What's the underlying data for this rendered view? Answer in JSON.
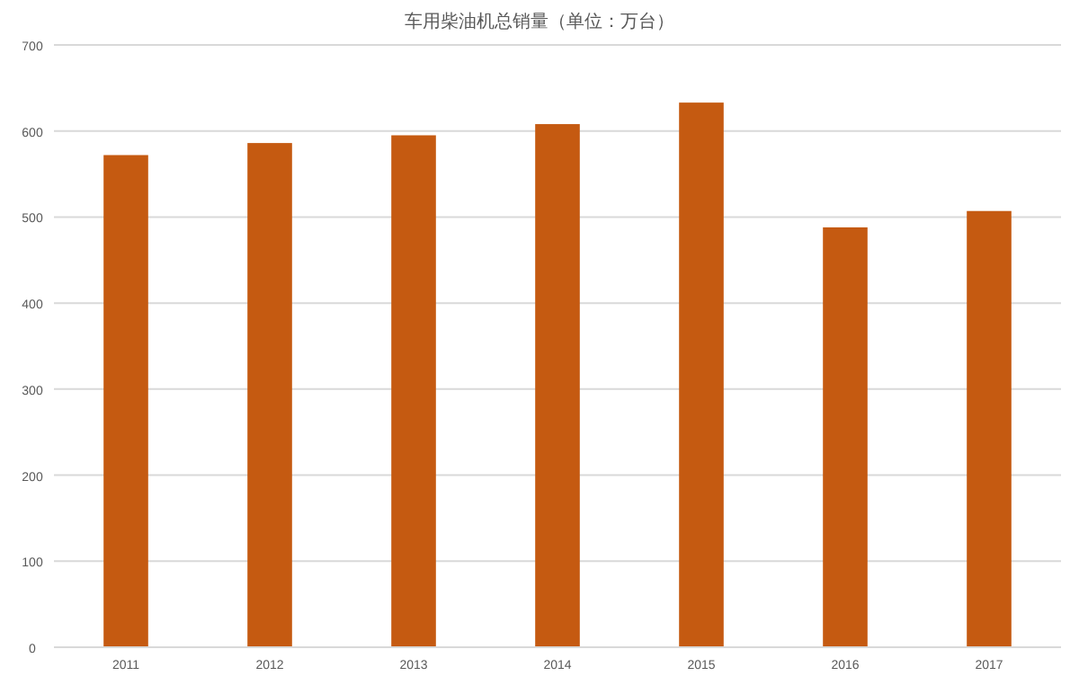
{
  "chart_data": {
    "type": "bar",
    "title": "车用柴油机总销量（单位：万台）",
    "categories": [
      "2011",
      "2012",
      "2013",
      "2014",
      "2015",
      "2016",
      "2017"
    ],
    "values": [
      572,
      586,
      595,
      608,
      633,
      488,
      507
    ],
    "color": "#c55a11",
    "ylim": [
      0,
      700
    ],
    "yticks": [
      0,
      100,
      200,
      300,
      400,
      500,
      600,
      700
    ],
    "grid": "y"
  }
}
